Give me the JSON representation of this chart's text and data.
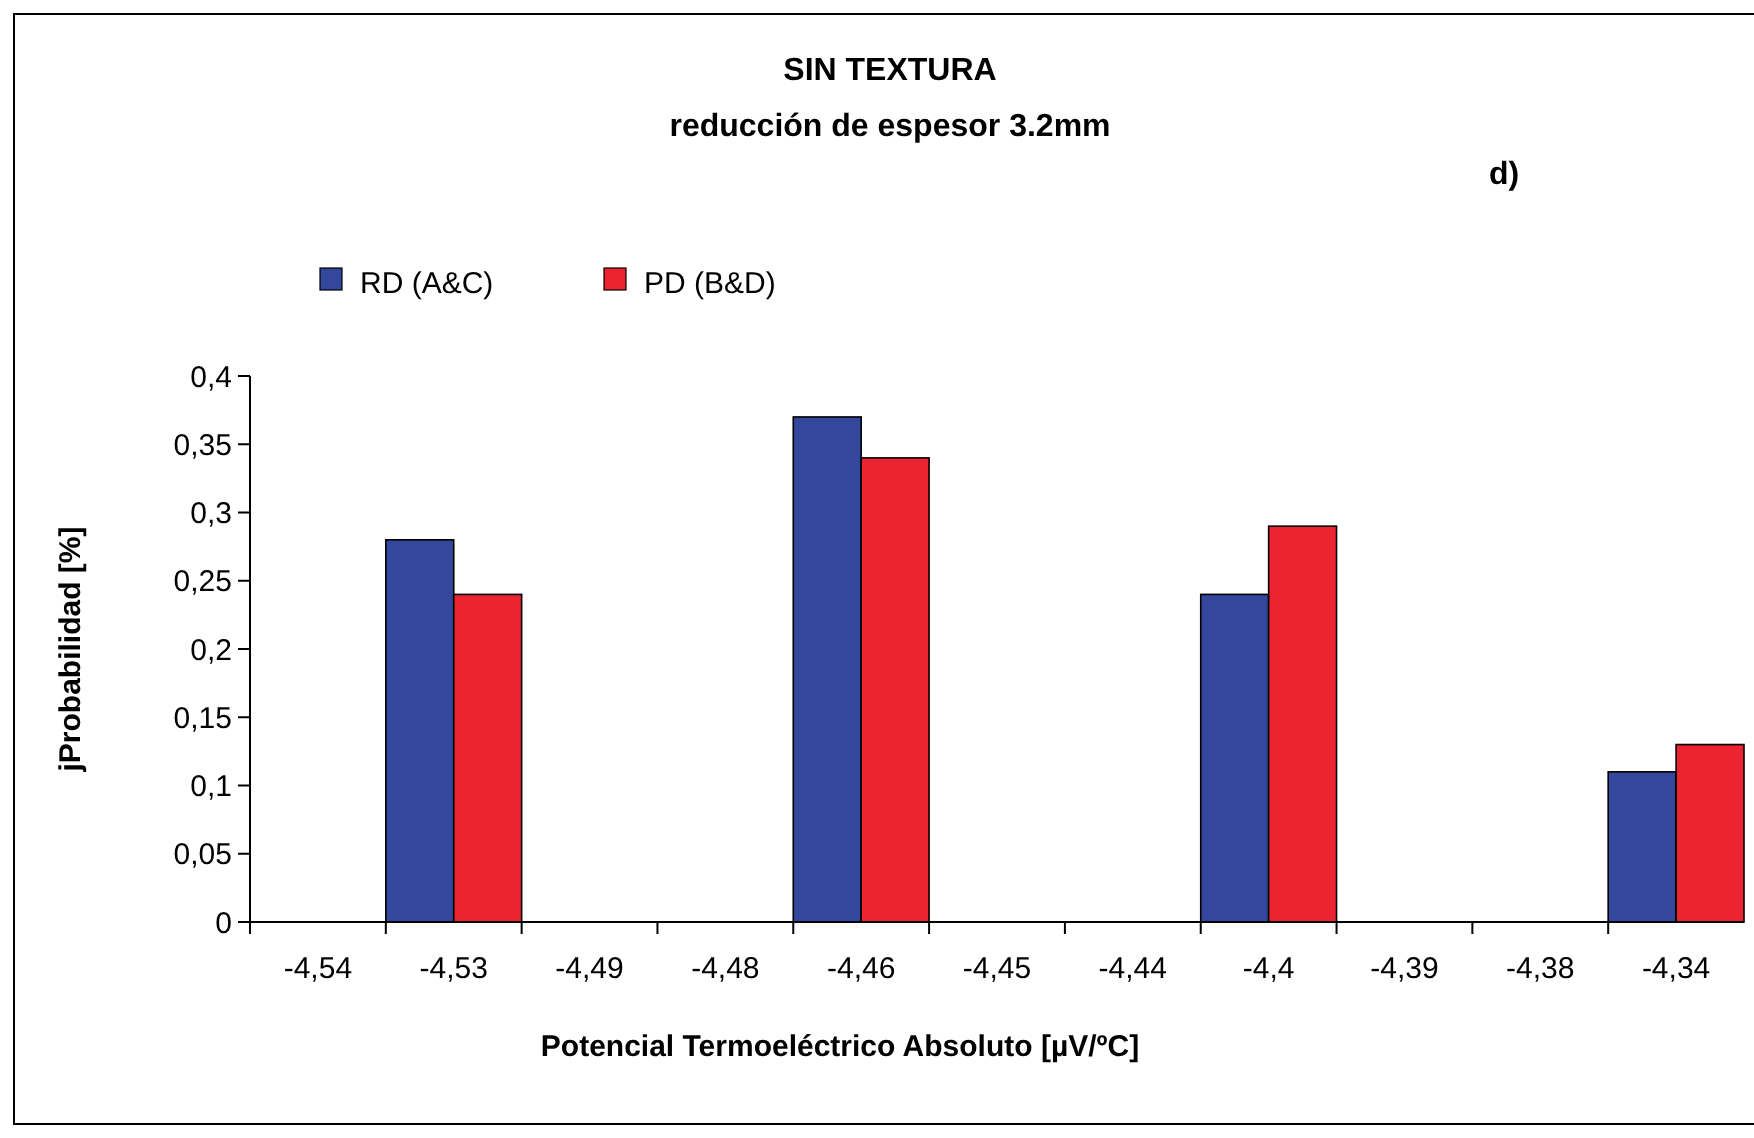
{
  "chart_data": {
    "type": "bar",
    "title": "SIN TEXTURA",
    "subtitle": "reducción de espesor 3.2mm",
    "xlabel": "Potencial Termoeléctrico Absoluto [µV/ºC]",
    "ylabel": "jProbabilidad [%]",
    "annotations": [
      "d)"
    ],
    "categories": [
      "-4,54",
      "-4,53",
      "-4,49",
      "-4,48",
      "-4,46",
      "-4,45",
      "-4,44",
      "-4,4",
      "-4,39",
      "-4,38",
      "-4,34"
    ],
    "series": [
      {
        "name": "RD (A&C)",
        "color": "#33479c",
        "values": [
          0,
          0.28,
          0,
          0,
          0.37,
          0,
          0,
          0.24,
          0,
          0,
          0.11
        ]
      },
      {
        "name": "PD (B&D)",
        "color": "#ec2330",
        "values": [
          0,
          0.24,
          0,
          0,
          0.34,
          0,
          0,
          0.29,
          0,
          0,
          0.13
        ]
      }
    ],
    "ylim": [
      0,
      0.4
    ],
    "yticks": [
      0,
      {
        "value": 0.05,
        "label": "0,05"
      },
      {
        "value": 0.1,
        "label": "0,1"
      },
      {
        "value": 0.15,
        "label": "0,15"
      },
      {
        "value": 0.2,
        "label": "0,2"
      },
      {
        "value": 0.25,
        "label": "0,25"
      },
      {
        "value": 0.3,
        "label": "0,3"
      },
      {
        "value": 0.35,
        "label": "0,35"
      },
      {
        "value": 0.4,
        "label": "0,4"
      }
    ],
    "grid": false,
    "legend": "top left"
  }
}
